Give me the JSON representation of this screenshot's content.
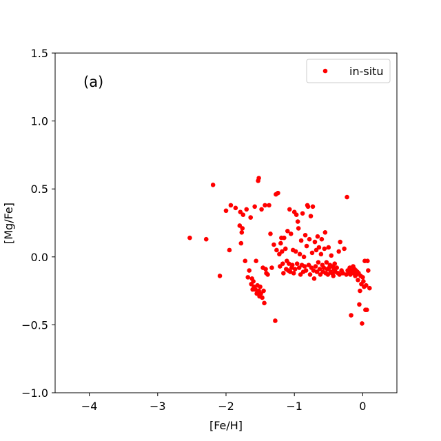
{
  "chart_data": {
    "type": "scatter",
    "panel_label": "(a)",
    "xlabel": "[Fe/H]",
    "ylabel": "[Mg/Fe]",
    "xlim": [
      -4.5,
      0.5
    ],
    "ylim": [
      -1.0,
      1.5
    ],
    "x_ticks": [
      -4,
      -3,
      -2,
      -1,
      0
    ],
    "y_ticks": [
      -1.0,
      -0.5,
      0.0,
      0.5,
      1.0,
      1.5
    ],
    "x_tick_labels": [
      "−4",
      "−3",
      "−2",
      "−1",
      "0"
    ],
    "y_tick_labels": [
      "−1.0",
      "−0.5",
      "0.0",
      "0.5",
      "1.0",
      "1.5"
    ],
    "legend_position": "top-right",
    "series": [
      {
        "name": "in-situ",
        "color": "#ff0000",
        "points": [
          [
            -2.53,
            0.14
          ],
          [
            -2.29,
            0.13
          ],
          [
            -2.19,
            0.53
          ],
          [
            -2.09,
            -0.14
          ],
          [
            -2.0,
            0.34
          ],
          [
            -1.95,
            0.05
          ],
          [
            -1.93,
            0.38
          ],
          [
            -1.86,
            0.36
          ],
          [
            -1.8,
            0.23
          ],
          [
            -1.79,
            0.33
          ],
          [
            -1.78,
            0.1
          ],
          [
            -1.77,
            0.18
          ],
          [
            -1.76,
            0.21
          ],
          [
            -1.75,
            0.31
          ],
          [
            -1.72,
            -0.03
          ],
          [
            -1.7,
            0.35
          ],
          [
            -1.68,
            -0.15
          ],
          [
            -1.66,
            -0.1
          ],
          [
            -1.64,
            0.29
          ],
          [
            -1.63,
            -0.2
          ],
          [
            -1.62,
            -0.16
          ],
          [
            -1.61,
            -0.24
          ],
          [
            -1.6,
            -0.18
          ],
          [
            -1.59,
            -0.22
          ],
          [
            -1.58,
            0.37
          ],
          [
            -1.57,
            -0.24
          ],
          [
            -1.56,
            -0.03
          ],
          [
            -1.55,
            -0.27
          ],
          [
            -1.54,
            -0.21
          ],
          [
            -1.53,
            0.56
          ],
          [
            -1.52,
            0.58
          ],
          [
            -1.52,
            -0.25
          ],
          [
            -1.51,
            -0.29
          ],
          [
            -1.5,
            -0.22
          ],
          [
            -1.49,
            -0.27
          ],
          [
            -1.48,
            0.35
          ],
          [
            -1.47,
            -0.3
          ],
          [
            -1.46,
            -0.08
          ],
          [
            -1.45,
            -0.25
          ],
          [
            -1.44,
            -0.34
          ],
          [
            -1.43,
            0.38
          ],
          [
            -1.42,
            -0.09
          ],
          [
            -1.41,
            -0.12
          ],
          [
            -1.39,
            -0.13
          ],
          [
            -1.37,
            0.38
          ],
          [
            -1.35,
            0.17
          ],
          [
            -1.33,
            -0.08
          ],
          [
            -1.3,
            0.09
          ],
          [
            -1.28,
            -0.47
          ],
          [
            -1.27,
            0.46
          ],
          [
            -1.26,
            0.05
          ],
          [
            -1.24,
            0.47
          ],
          [
            -1.22,
            0.02
          ],
          [
            -1.21,
            -0.07
          ],
          [
            -1.2,
            0.1
          ],
          [
            -1.19,
            0.14
          ],
          [
            -1.18,
            0.04
          ],
          [
            -1.17,
            -0.05
          ],
          [
            -1.16,
            -0.12
          ],
          [
            -1.15,
            0.14
          ],
          [
            -1.13,
            0.06
          ],
          [
            -1.12,
            -0.09
          ],
          [
            -1.11,
            -0.03
          ],
          [
            -1.1,
            0.19
          ],
          [
            -1.09,
            -0.1
          ],
          [
            -1.08,
            -0.05
          ],
          [
            -1.07,
            0.35
          ],
          [
            -1.06,
            -0.11
          ],
          [
            -1.05,
            0.17
          ],
          [
            -1.04,
            -0.08
          ],
          [
            -1.03,
            -0.06
          ],
          [
            -1.02,
            0.05
          ],
          [
            -1.01,
            -0.12
          ],
          [
            -1.0,
            0.33
          ],
          [
            -0.99,
            -0.09
          ],
          [
            -0.98,
            0.04
          ],
          [
            -0.97,
            0.31
          ],
          [
            -0.96,
            -0.05
          ],
          [
            -0.95,
            0.26
          ],
          [
            -0.94,
            0.21
          ],
          [
            -0.93,
            -0.08
          ],
          [
            -0.92,
            0.02
          ],
          [
            -0.91,
            -0.13
          ],
          [
            -0.9,
            0.12
          ],
          [
            -0.89,
            -0.06
          ],
          [
            -0.88,
            0.32
          ],
          [
            -0.87,
            -0.11
          ],
          [
            -0.86,
            0.0
          ],
          [
            -0.85,
            -0.07
          ],
          [
            -0.84,
            0.16
          ],
          [
            -0.83,
            -0.1
          ],
          [
            -0.82,
            0.08
          ],
          [
            -0.81,
            0.38
          ],
          [
            -0.8,
            0.37
          ],
          [
            -0.79,
            -0.06
          ],
          [
            -0.78,
            0.13
          ],
          [
            -0.77,
            -0.13
          ],
          [
            -0.76,
            0.3
          ],
          [
            -0.75,
            -0.08
          ],
          [
            -0.74,
            0.03
          ],
          [
            -0.73,
            0.37
          ],
          [
            -0.72,
            -0.1
          ],
          [
            -0.71,
            -0.16
          ],
          [
            -0.7,
            0.11
          ],
          [
            -0.69,
            -0.07
          ],
          [
            -0.68,
            0.05
          ],
          [
            -0.67,
            -0.11
          ],
          [
            -0.66,
            0.15
          ],
          [
            -0.65,
            -0.04
          ],
          [
            -0.64,
            0.07
          ],
          [
            -0.63,
            -0.09
          ],
          [
            -0.62,
            -0.13
          ],
          [
            -0.61,
            0.02
          ],
          [
            -0.6,
            0.13
          ],
          [
            -0.59,
            -0.06
          ],
          [
            -0.58,
            -0.11
          ],
          [
            -0.57,
            -0.08
          ],
          [
            -0.56,
            0.06
          ],
          [
            -0.55,
            0.18
          ],
          [
            -0.54,
            -0.12
          ],
          [
            -0.53,
            -0.04
          ],
          [
            -0.52,
            -0.09
          ],
          [
            -0.51,
            -0.13
          ],
          [
            -0.5,
            0.07
          ],
          [
            -0.49,
            -0.08
          ],
          [
            -0.48,
            -0.06
          ],
          [
            -0.47,
            -0.11
          ],
          [
            -0.46,
            0.01
          ],
          [
            -0.45,
            -0.12
          ],
          [
            -0.44,
            -0.07
          ],
          [
            -0.43,
            -0.14
          ],
          [
            -0.42,
            -0.09
          ],
          [
            -0.41,
            -0.05
          ],
          [
            -0.4,
            -0.11
          ],
          [
            -0.38,
            -0.08
          ],
          [
            -0.36,
            -0.12
          ],
          [
            -0.35,
            0.04
          ],
          [
            -0.34,
            -0.13
          ],
          [
            -0.33,
            0.11
          ],
          [
            -0.31,
            -0.1
          ],
          [
            -0.29,
            -0.12
          ],
          [
            -0.27,
            0.06
          ],
          [
            -0.24,
            -0.13
          ],
          [
            -0.23,
            0.44
          ],
          [
            -0.22,
            -0.1
          ],
          [
            -0.2,
            -0.12
          ],
          [
            -0.19,
            -0.08
          ],
          [
            -0.18,
            -0.13
          ],
          [
            -0.17,
            -0.43
          ],
          [
            -0.16,
            -0.1
          ],
          [
            -0.15,
            -0.11
          ],
          [
            -0.14,
            -0.07
          ],
          [
            -0.13,
            -0.12
          ],
          [
            -0.12,
            -0.09
          ],
          [
            -0.11,
            -0.14
          ],
          [
            -0.1,
            -0.1
          ],
          [
            -0.09,
            -0.13
          ],
          [
            -0.08,
            -0.11
          ],
          [
            -0.07,
            -0.17
          ],
          [
            -0.06,
            -0.12
          ],
          [
            -0.05,
            -0.35
          ],
          [
            -0.04,
            -0.25
          ],
          [
            -0.03,
            -0.14
          ],
          [
            -0.02,
            -0.2
          ],
          [
            -0.01,
            -0.49
          ],
          [
            0.0,
            -0.15
          ],
          [
            0.01,
            -0.18
          ],
          [
            0.02,
            -0.22
          ],
          [
            0.03,
            -0.03
          ],
          [
            0.04,
            -0.39
          ],
          [
            0.05,
            -0.21
          ],
          [
            0.06,
            -0.39
          ],
          [
            0.07,
            -0.03
          ],
          [
            0.08,
            -0.1
          ],
          [
            0.1,
            -0.23
          ]
        ]
      }
    ]
  }
}
